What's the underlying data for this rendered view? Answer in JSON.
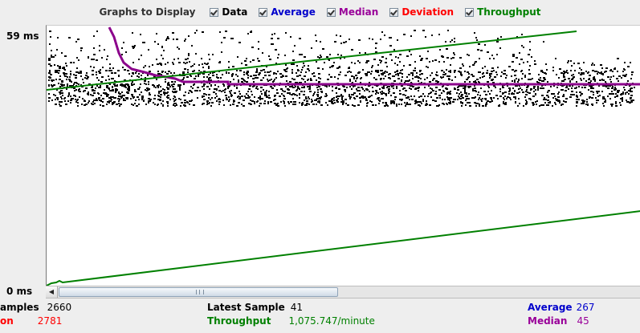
{
  "legend": {
    "title": "Graphs to Display",
    "items": [
      {
        "label": "Data",
        "color": "#000000",
        "checked": true
      },
      {
        "label": "Average",
        "color": "#0000cc",
        "checked": true
      },
      {
        "label": "Median",
        "color": "#990099",
        "checked": true
      },
      {
        "label": "Deviation",
        "color": "#ff0000",
        "checked": true
      },
      {
        "label": "Throughput",
        "color": "#008000",
        "checked": true
      }
    ]
  },
  "y_axis": {
    "max_label": "59  ms",
    "min_label": "0  ms"
  },
  "stats": {
    "samples": {
      "label": "amples",
      "value": "2660"
    },
    "deviation": {
      "label": "on",
      "value": "2781"
    },
    "latest": {
      "label": "Latest Sample",
      "value": "41"
    },
    "throughput": {
      "label": "Throughput",
      "value": "1,075.747/minute"
    },
    "average": {
      "label": "Average",
      "value": "267"
    },
    "median": {
      "label": "Median",
      "value": "45"
    }
  },
  "colors": {
    "data": "#000000",
    "median": "#8b008b",
    "throughput": "#008000",
    "average": "#0000cc",
    "deviation": "#ff0000"
  }
}
